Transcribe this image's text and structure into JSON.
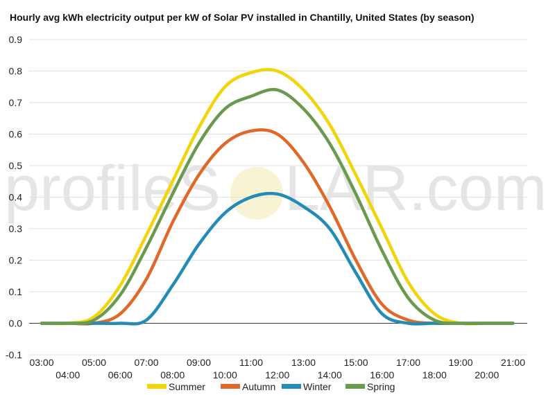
{
  "chart_data": {
    "type": "line",
    "title": "Hourly avg kWh electricity output per kW of Solar PV installed in Chantilly, United States (by season)",
    "xlabel": "",
    "ylabel": "",
    "ylim": [
      -0.1,
      0.9
    ],
    "yticks": [
      -0.1,
      0.0,
      0.1,
      0.2,
      0.3,
      0.4,
      0.5,
      0.6,
      0.7,
      0.8,
      0.9
    ],
    "ytick_labels": [
      "-0.1",
      "0.0",
      "0.1",
      "0.2",
      "0.3",
      "0.4",
      "0.5",
      "0.6",
      "0.7",
      "0.8",
      "0.9"
    ],
    "x": [
      "03:00",
      "04:00",
      "05:00",
      "06:00",
      "07:00",
      "08:00",
      "09:00",
      "10:00",
      "11:00",
      "12:00",
      "13:00",
      "14:00",
      "15:00",
      "16:00",
      "17:00",
      "18:00",
      "19:00",
      "20:00",
      "21:00"
    ],
    "grid": true,
    "legend_position": "bottom",
    "series": [
      {
        "name": "Summer",
        "color": "#f2d40a",
        "values": [
          0,
          0,
          0.02,
          0.12,
          0.28,
          0.45,
          0.62,
          0.75,
          0.795,
          0.8,
          0.74,
          0.63,
          0.47,
          0.3,
          0.13,
          0.03,
          0,
          0,
          0
        ]
      },
      {
        "name": "Autumn",
        "color": "#e0692a",
        "values": [
          0,
          0,
          0,
          0.03,
          0.14,
          0.32,
          0.47,
          0.57,
          0.61,
          0.6,
          0.51,
          0.37,
          0.2,
          0.06,
          0.01,
          0,
          0,
          0,
          0
        ]
      },
      {
        "name": "Winter",
        "color": "#238bb5",
        "values": [
          0,
          0,
          0,
          0,
          0.01,
          0.12,
          0.25,
          0.35,
          0.4,
          0.41,
          0.37,
          0.3,
          0.16,
          0.03,
          0,
          0,
          0,
          0,
          0
        ]
      },
      {
        "name": "Spring",
        "color": "#6a9a4e",
        "values": [
          0,
          0,
          0.01,
          0.09,
          0.24,
          0.41,
          0.57,
          0.68,
          0.72,
          0.74,
          0.68,
          0.57,
          0.41,
          0.23,
          0.08,
          0.01,
          0,
          0,
          0
        ]
      }
    ]
  },
  "watermark": {
    "text_left": "profileS",
    "text_right": "LAR.com"
  }
}
